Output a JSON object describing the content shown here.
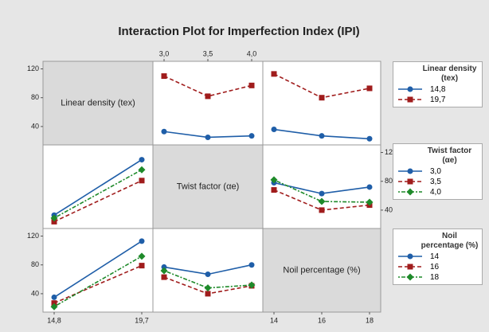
{
  "chart_data": {
    "type": "interaction_matrix",
    "title": "Interaction Plot for Imperfection Index (IPI)",
    "factors": [
      {
        "name": "Linear density (tex)",
        "levels": [
          "14,8",
          "19,7"
        ]
      },
      {
        "name": "Twist factor (αe)",
        "levels": [
          "3,0",
          "3,5",
          "4,0"
        ]
      },
      {
        "name": "Noil percentage (%)",
        "levels": [
          "14",
          "16",
          "18"
        ]
      }
    ],
    "colors": [
      "#1f5ea8",
      "#a01c1c",
      "#1e8a2a"
    ],
    "ylim": [
      20,
      125
    ],
    "yticks": [
      40,
      80,
      120
    ],
    "panels": [
      [
        [
          [
            33,
            25,
            27
          ],
          [
            110,
            82,
            97
          ]
        ],
        [
          [
            36,
            27,
            23
          ],
          [
            113,
            80,
            93
          ]
        ]
      ],
      [
        [
          [
            33,
            110
          ],
          [
            24,
            81
          ],
          [
            29,
            96
          ]
        ],
        [
          [
            78,
            63,
            72
          ],
          [
            68,
            40,
            47
          ],
          [
            82,
            52,
            51
          ]
        ]
      ],
      [
        [
          [
            35,
            113
          ],
          [
            27,
            79
          ],
          [
            22,
            92
          ]
        ],
        [
          [
            77,
            67,
            80
          ],
          [
            63,
            40,
            51
          ],
          [
            72,
            48,
            52
          ]
        ]
      ]
    ]
  }
}
